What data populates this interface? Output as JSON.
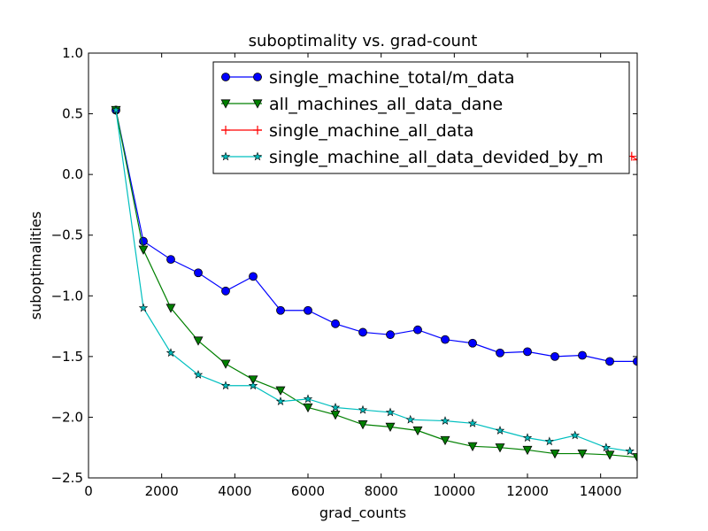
{
  "chart_data": {
    "type": "line",
    "title": "suboptimality vs. grad-count",
    "xlabel": "grad_counts",
    "ylabel": "suboptimalities",
    "xlim": [
      0,
      15000
    ],
    "ylim": [
      -2.5,
      1.0
    ],
    "xticks": [
      0,
      2000,
      4000,
      6000,
      8000,
      10000,
      12000,
      14000
    ],
    "yticks": [
      1.0,
      0.5,
      0.0,
      -0.5,
      -1.0,
      -1.5,
      -2.0,
      -2.5
    ],
    "xtick_labels": [
      "0",
      "2000",
      "4000",
      "6000",
      "8000",
      "10000",
      "12000",
      "14000"
    ],
    "ytick_labels": [
      "1.0",
      "0.5",
      "0.0",
      "−0.5",
      "−1.0",
      "−1.5",
      "−2.0",
      "−2.5"
    ],
    "grid": false,
    "legend_position": "top-right",
    "series": [
      {
        "name": "single_machine_total/m_data",
        "color": "#0000ff",
        "marker": "circle",
        "x": [
          750,
          1500,
          2250,
          3000,
          3750,
          4500,
          5250,
          6000,
          6750,
          7500,
          8250,
          9000,
          9750,
          10500,
          11250,
          12000,
          12750,
          13500,
          14250,
          15000
        ],
        "y": [
          0.53,
          -0.55,
          -0.7,
          -0.81,
          -0.96,
          -0.84,
          -1.12,
          -1.12,
          -1.23,
          -1.3,
          -1.32,
          -1.28,
          -1.36,
          -1.39,
          -1.47,
          -1.46,
          -1.5,
          -1.49,
          -1.54,
          -1.54
        ]
      },
      {
        "name": "all_machines_all_data_dane",
        "color": "#008000",
        "marker": "triangle-down",
        "x": [
          750,
          1500,
          2250,
          3000,
          3750,
          4500,
          5250,
          6000,
          6750,
          7500,
          8250,
          9000,
          9750,
          10500,
          11250,
          12000,
          12750,
          13500,
          14250,
          15000
        ],
        "y": [
          0.53,
          -0.62,
          -1.1,
          -1.37,
          -1.56,
          -1.69,
          -1.78,
          -1.92,
          -1.98,
          -2.06,
          -2.08,
          -2.11,
          -2.19,
          -2.24,
          -2.25,
          -2.27,
          -2.3,
          -2.3,
          -2.31,
          -2.33
        ]
      },
      {
        "name": "single_machine_all_data",
        "color": "#ff0000",
        "marker": "plus",
        "x": [
          14850,
          15000
        ],
        "y": [
          0.15,
          0.12
        ]
      },
      {
        "name": "single_machine_all_data_devided_by_m",
        "color": "#00bfbf",
        "marker": "star",
        "x": [
          750,
          1500,
          2250,
          3000,
          3750,
          4500,
          5250,
          6000,
          6750,
          7500,
          8250,
          8800,
          9750,
          10500,
          11250,
          12000,
          12600,
          13300,
          14150,
          14800
        ],
        "y": [
          0.53,
          -1.1,
          -1.47,
          -1.65,
          -1.74,
          -1.74,
          -1.87,
          -1.85,
          -1.92,
          -1.94,
          -1.96,
          -2.02,
          -2.03,
          -2.05,
          -2.11,
          -2.17,
          -2.2,
          -2.15,
          -2.25,
          -2.28
        ]
      }
    ]
  }
}
